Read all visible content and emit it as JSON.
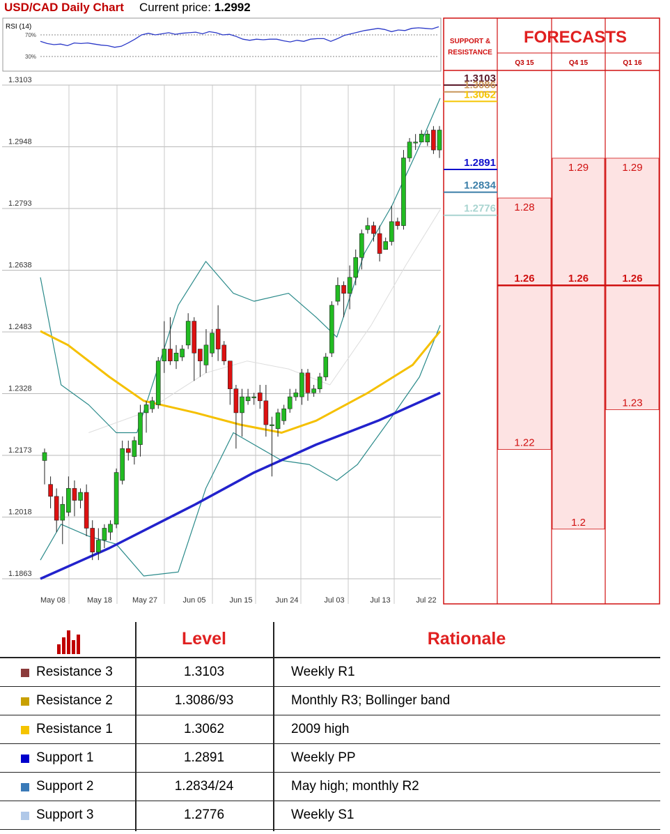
{
  "header": {
    "title": "USD/CAD Daily Chart",
    "price_label": "Current price:",
    "price_value": "1.2992"
  },
  "rsi": {
    "label": "RSI (14)",
    "levels": [
      "70%",
      "30%"
    ],
    "values": [
      0.58,
      0.54,
      0.52,
      0.53,
      0.5,
      0.55,
      0.54,
      0.55,
      0.53,
      0.51,
      0.5,
      0.47,
      0.49,
      0.55,
      0.62,
      0.7,
      0.73,
      0.7,
      0.72,
      0.74,
      0.71,
      0.73,
      0.74,
      0.75,
      0.72,
      0.76,
      0.74,
      0.7,
      0.71,
      0.67,
      0.62,
      0.6,
      0.62,
      0.61,
      0.62,
      0.62,
      0.59,
      0.57,
      0.6,
      0.58,
      0.62,
      0.63,
      0.63,
      0.58,
      0.63,
      0.69,
      0.72,
      0.75,
      0.78,
      0.8,
      0.82,
      0.8,
      0.76,
      0.79,
      0.78,
      0.82,
      0.83,
      0.82,
      0.81,
      0.85
    ]
  },
  "chart_data": {
    "type": "candlestick",
    "title": "USD/CAD Daily Chart",
    "ylim": [
      1.1863,
      1.3103
    ],
    "y_ticks": [
      "1.3103",
      "1.2948",
      "1.2793",
      "1.2638",
      "1.2483",
      "1.2328",
      "1.2173",
      "1.2018",
      "1.1863"
    ],
    "x_labels": [
      "May 08",
      "May 18",
      "May 27",
      "Jun 05",
      "Jun 15",
      "Jun 24",
      "Jul 03",
      "Jul 13",
      "Jul 22"
    ],
    "candles": [
      [
        1.216,
        1.218,
        1.21,
        1.219
      ],
      [
        1.21,
        1.207,
        1.204,
        1.212
      ],
      [
        1.207,
        1.201,
        1.198,
        1.209
      ],
      [
        1.201,
        1.205,
        1.195,
        1.207
      ],
      [
        1.203,
        1.209,
        1.202,
        1.212
      ],
      [
        1.209,
        1.206,
        1.202,
        1.211
      ],
      [
        1.206,
        1.208,
        1.204,
        1.209
      ],
      [
        1.208,
        1.199,
        1.197,
        1.21
      ],
      [
        1.199,
        1.193,
        1.191,
        1.201
      ],
      [
        1.193,
        1.196,
        1.191,
        1.199
      ],
      [
        1.196,
        1.199,
        1.194,
        1.2
      ],
      [
        1.198,
        1.2,
        1.196,
        1.201
      ],
      [
        1.2,
        1.213,
        1.199,
        1.214
      ],
      [
        1.211,
        1.219,
        1.21,
        1.221
      ],
      [
        1.219,
        1.218,
        1.216,
        1.221
      ],
      [
        1.217,
        1.221,
        1.215,
        1.222
      ],
      [
        1.22,
        1.228,
        1.217,
        1.23
      ],
      [
        1.228,
        1.23,
        1.223,
        1.231
      ],
      [
        1.229,
        1.231,
        1.228,
        1.232
      ],
      [
        1.23,
        1.241,
        1.229,
        1.242
      ],
      [
        1.241,
        1.244,
        1.238,
        1.251
      ],
      [
        1.244,
        1.241,
        1.24,
        1.252
      ],
      [
        1.241,
        1.243,
        1.239,
        1.245
      ],
      [
        1.242,
        1.244,
        1.241,
        1.245
      ],
      [
        1.245,
        1.251,
        1.244,
        1.253
      ],
      [
        1.251,
        1.243,
        1.236,
        1.252
      ],
      [
        1.244,
        1.241,
        1.237,
        1.244
      ],
      [
        1.24,
        1.245,
        1.238,
        1.249
      ],
      [
        1.243,
        1.248,
        1.242,
        1.249
      ],
      [
        1.249,
        1.244,
        1.241,
        1.255
      ],
      [
        1.245,
        1.241,
        1.24,
        1.246
      ],
      [
        1.241,
        1.234,
        1.23,
        1.241
      ],
      [
        1.234,
        1.228,
        1.219,
        1.235
      ],
      [
        1.228,
        1.232,
        1.222,
        1.234
      ],
      [
        1.231,
        1.232,
        1.23,
        1.234
      ],
      [
        1.232,
        1.232,
        1.23,
        1.233
      ],
      [
        1.233,
        1.231,
        1.229,
        1.235
      ],
      [
        1.231,
        1.225,
        1.222,
        1.235
      ],
      [
        1.225,
        1.225,
        1.212,
        1.227
      ],
      [
        1.224,
        1.228,
        1.222,
        1.229
      ],
      [
        1.226,
        1.229,
        1.225,
        1.23
      ],
      [
        1.229,
        1.232,
        1.228,
        1.234
      ],
      [
        1.232,
        1.233,
        1.231,
        1.234
      ],
      [
        1.232,
        1.238,
        1.23,
        1.239
      ],
      [
        1.238,
        1.233,
        1.231,
        1.239
      ],
      [
        1.233,
        1.234,
        1.232,
        1.235
      ],
      [
        1.234,
        1.237,
        1.233,
        1.238
      ],
      [
        1.237,
        1.242,
        1.236,
        1.243
      ],
      [
        1.243,
        1.255,
        1.242,
        1.256
      ],
      [
        1.256,
        1.26,
        1.255,
        1.262
      ],
      [
        1.26,
        1.258,
        1.252,
        1.261
      ],
      [
        1.258,
        1.262,
        1.254,
        1.265
      ],
      [
        1.262,
        1.267,
        1.26,
        1.269
      ],
      [
        1.267,
        1.273,
        1.264,
        1.274
      ],
      [
        1.274,
        1.275,
        1.273,
        1.277
      ],
      [
        1.275,
        1.273,
        1.271,
        1.276
      ],
      [
        1.273,
        1.268,
        1.266,
        1.275
      ],
      [
        1.269,
        1.271,
        1.27,
        1.272
      ],
      [
        1.271,
        1.276,
        1.27,
        1.28
      ],
      [
        1.276,
        1.275,
        1.274,
        1.277
      ],
      [
        1.275,
        1.292,
        1.274,
        1.294
      ],
      [
        1.292,
        1.296,
        1.291,
        1.297
      ],
      [
        1.296,
        1.296,
        1.294,
        1.298
      ],
      [
        1.296,
        1.298,
        1.296,
        1.299
      ],
      [
        1.296,
        1.298,
        1.295,
        1.299
      ],
      [
        1.299,
        1.294,
        1.293,
        1.3
      ],
      [
        1.294,
        1.299,
        1.292,
        1.3
      ]
    ],
    "ma_50": [
      [
        0,
        1.2485
      ],
      [
        8,
        1.245
      ],
      [
        20,
        1.237
      ],
      [
        30,
        1.231
      ],
      [
        45,
        1.228
      ],
      [
        58,
        1.225
      ],
      [
        70,
        1.223
      ],
      [
        80,
        1.226
      ],
      [
        95,
        1.233
      ],
      [
        108,
        1.24
      ],
      [
        116,
        1.2485
      ]
    ],
    "ma_200": [
      [
        0,
        1.1863
      ],
      [
        20,
        1.194
      ],
      [
        45,
        1.205
      ],
      [
        62,
        1.213
      ],
      [
        80,
        1.22
      ],
      [
        98,
        1.226
      ],
      [
        116,
        1.233
      ]
    ],
    "boll_upper": [
      [
        0,
        1.262
      ],
      [
        6,
        1.235
      ],
      [
        14,
        1.23
      ],
      [
        22,
        1.223
      ],
      [
        28,
        1.223
      ],
      [
        40,
        1.255
      ],
      [
        48,
        1.266
      ],
      [
        56,
        1.258
      ],
      [
        62,
        1.256
      ],
      [
        72,
        1.258
      ],
      [
        80,
        1.252
      ],
      [
        86,
        1.247
      ],
      [
        94,
        1.268
      ],
      [
        102,
        1.28
      ],
      [
        110,
        1.295
      ],
      [
        116,
        1.307
      ]
    ],
    "boll_lower": [
      [
        0,
        1.191
      ],
      [
        6,
        1.2
      ],
      [
        14,
        1.197
      ],
      [
        22,
        1.195
      ],
      [
        30,
        1.187
      ],
      [
        40,
        1.188
      ],
      [
        48,
        1.209
      ],
      [
        56,
        1.223
      ],
      [
        62,
        1.22
      ],
      [
        70,
        1.216
      ],
      [
        78,
        1.215
      ],
      [
        86,
        1.211
      ],
      [
        92,
        1.215
      ],
      [
        102,
        1.227
      ],
      [
        110,
        1.237
      ],
      [
        116,
        1.25
      ]
    ],
    "boll_mid": [
      [
        14,
        1.223
      ],
      [
        30,
        1.228
      ],
      [
        48,
        1.238
      ],
      [
        60,
        1.241
      ],
      [
        72,
        1.239
      ],
      [
        84,
        1.235
      ],
      [
        96,
        1.25
      ],
      [
        106,
        1.265
      ],
      [
        116,
        1.279
      ]
    ]
  },
  "levels_panel": {
    "heading": "SUPPORT & RESISTANCE",
    "levels": [
      {
        "label": "1.3103",
        "value": 1.3103,
        "color": "#5a1a2a"
      },
      {
        "label": "1.3086",
        "value": 1.3086,
        "color": "#c8955a"
      },
      {
        "label": "1.3062",
        "value": 1.3062,
        "color": "#f5c400"
      },
      {
        "label": "1.2891",
        "value": 1.2891,
        "color": "#1010cc"
      },
      {
        "label": "1.2834",
        "value": 1.2834,
        "color": "#3a7ea8"
      },
      {
        "label": "1.2776",
        "value": 1.2776,
        "color": "#a8d4d0"
      }
    ]
  },
  "forecasts": {
    "title": "FORECASTS",
    "columns": [
      {
        "quarter": "Q3 15",
        "high": "1.28",
        "mid": "1.26",
        "low": "1.22"
      },
      {
        "quarter": "Q4 15",
        "high": "1.29",
        "mid": "1.26",
        "low": "1.2"
      },
      {
        "quarter": "Q1 16",
        "high": "1.29",
        "mid": "1.26",
        "low": "1.23"
      }
    ]
  },
  "table": {
    "col_level": "Level",
    "col_rationale": "Rationale",
    "rows": [
      {
        "name": "Resistance 3",
        "level": "1.3103",
        "rationale": "Weekly R1",
        "color": "#8b3a3a"
      },
      {
        "name": "Resistance 2",
        "level": "1.3086/93",
        "rationale": "Monthly R3; Bollinger band",
        "color": "#c8a000"
      },
      {
        "name": "Resistance 1",
        "level": "1.3062",
        "rationale": "2009 high",
        "color": "#f5c400"
      },
      {
        "name": "Support 1",
        "level": "1.2891",
        "rationale": "Weekly PP",
        "color": "#0000cc"
      },
      {
        "name": "Support 2",
        "level": "1.2834/24",
        "rationale": "May high; monthly R2",
        "color": "#3a7ab8"
      },
      {
        "name": "Support 3",
        "level": "1.2776",
        "rationale": "Weekly S1",
        "color": "#b0c8e8"
      }
    ]
  },
  "colors": {
    "up": "#22bb22",
    "down": "#dd1111",
    "accent": "#e02020"
  }
}
